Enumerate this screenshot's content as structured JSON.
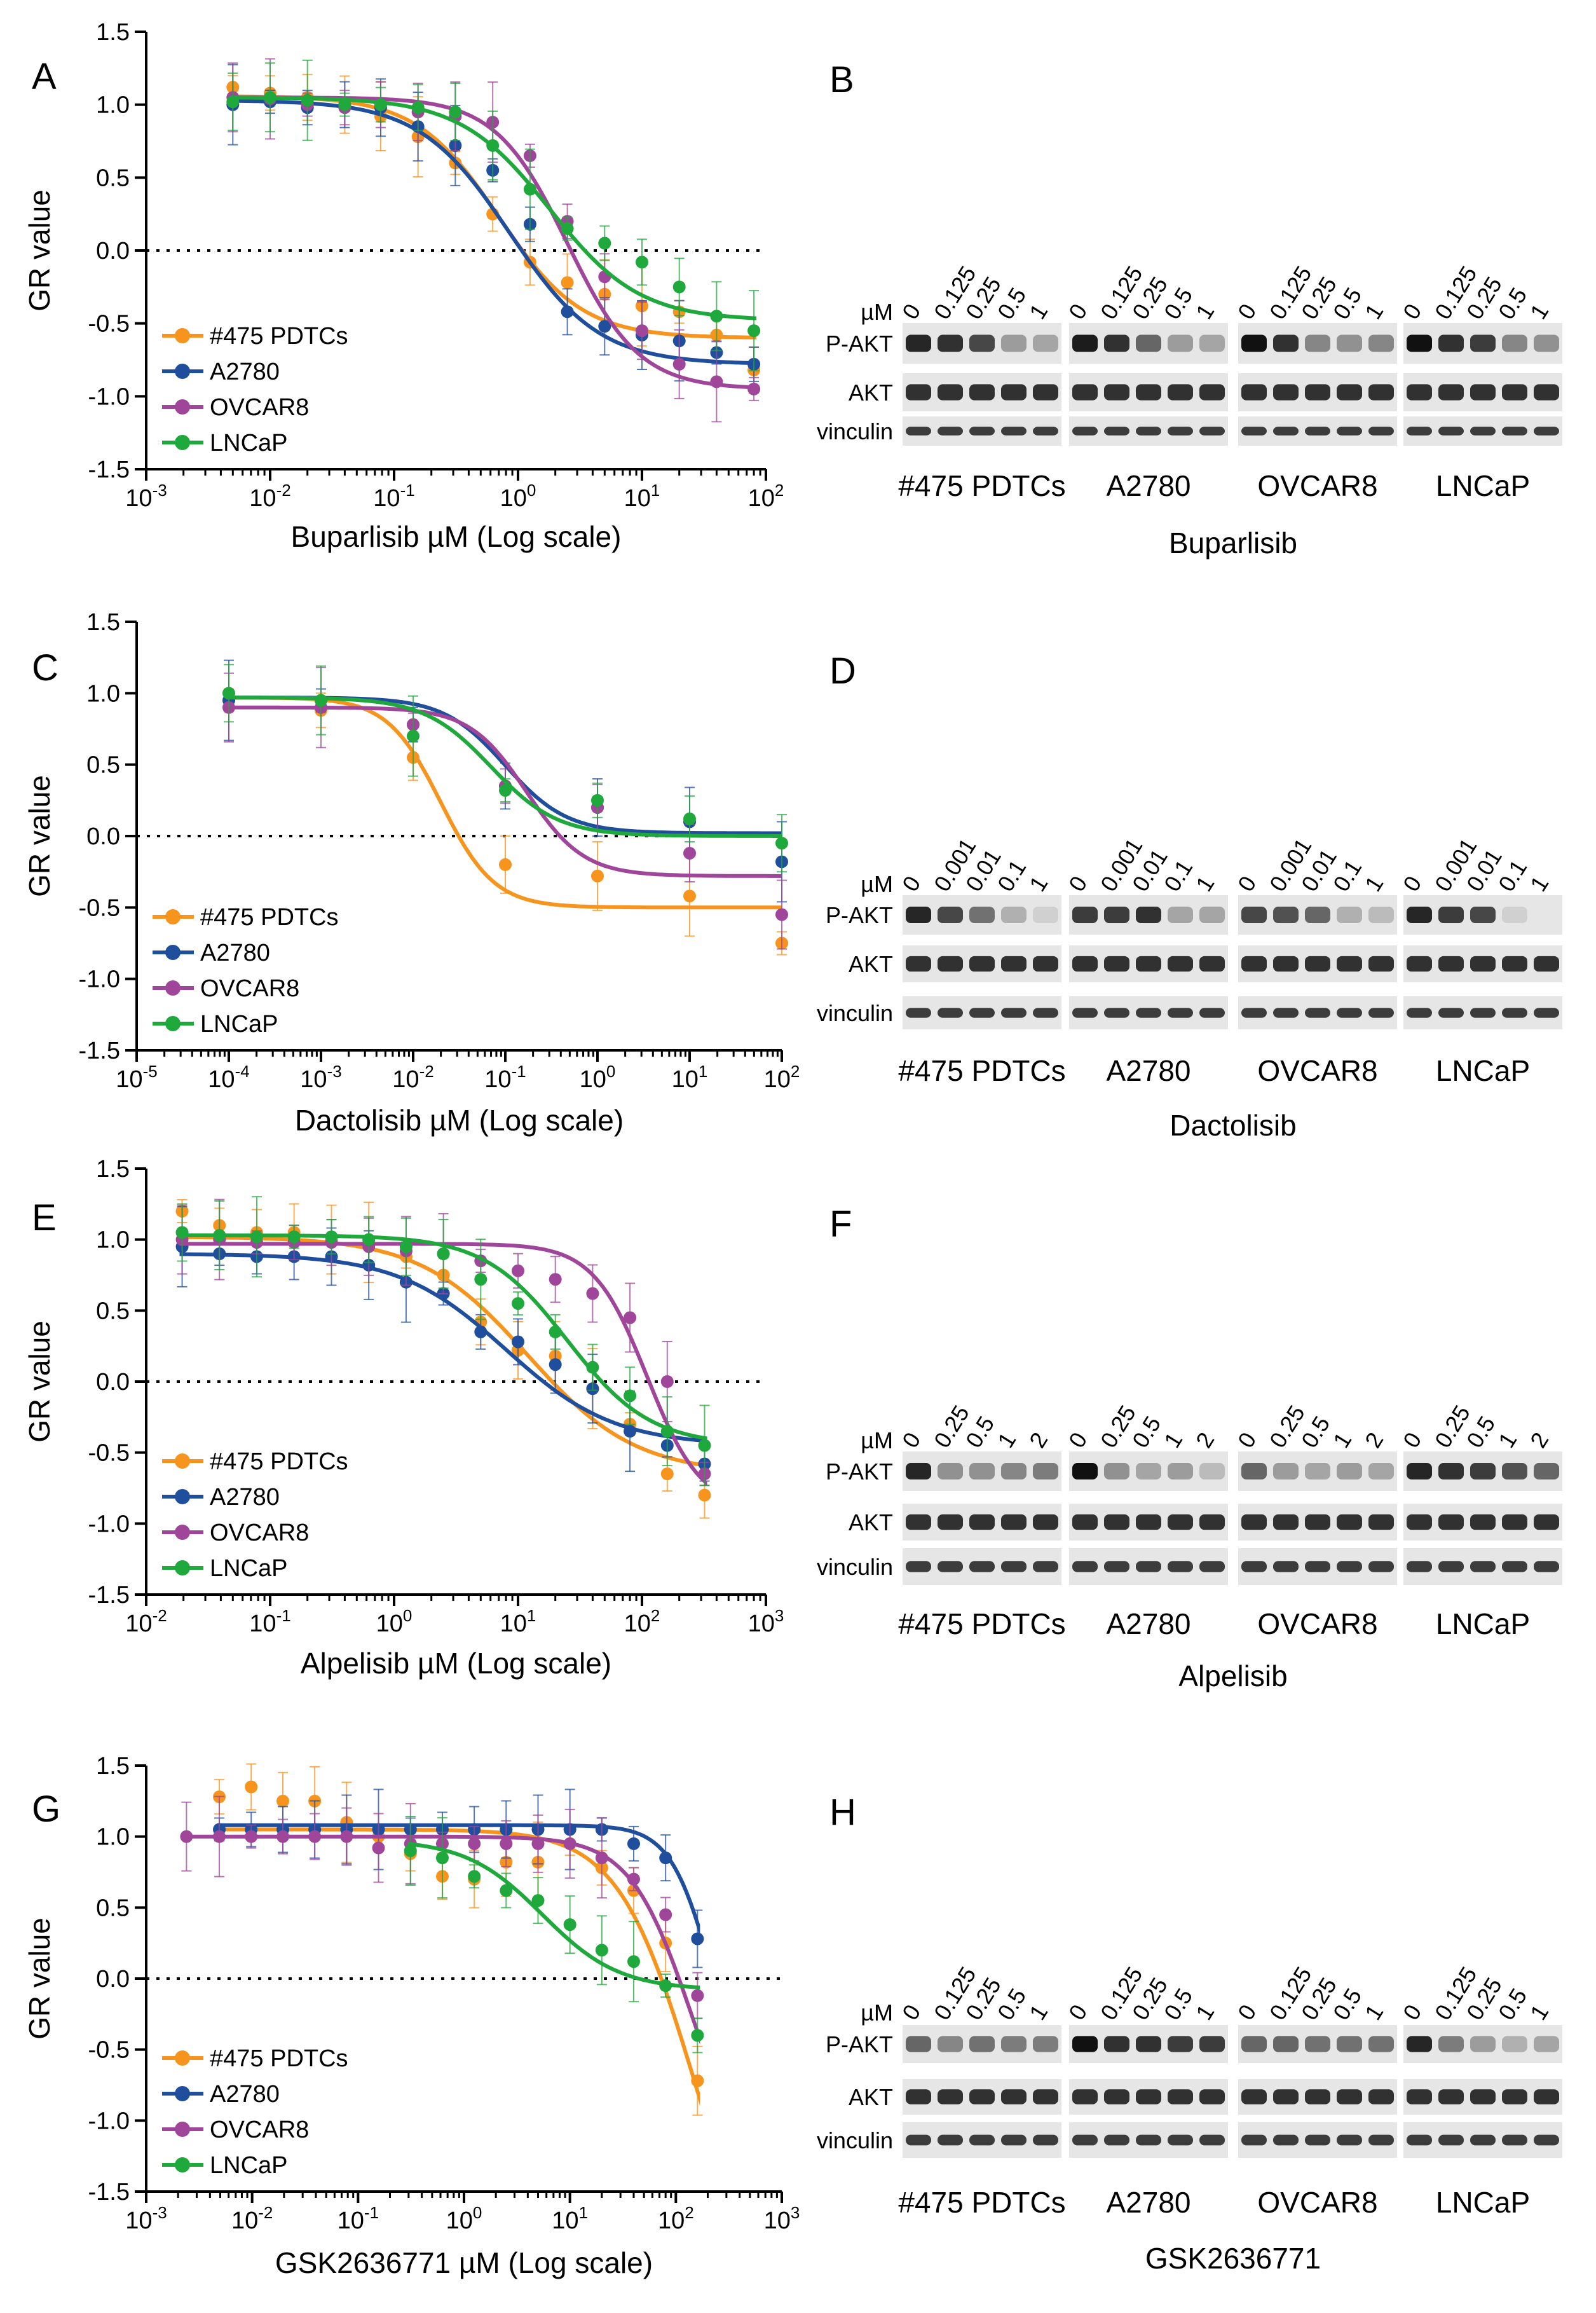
{
  "colors": {
    "#475 PDTCs": "#f7941d",
    "A2780": "#1f4e9c",
    "OVCAR8": "#a0469a",
    "LNCaP": "#1fa83c"
  },
  "chart_data": [
    {
      "type": "scatter",
      "panel": "A",
      "title": "",
      "xlabel": "Buparlisib µM (Log scale)",
      "ylabel": "GR value",
      "xscale": "log",
      "xlim": [
        0.001,
        100
      ],
      "ylim": [
        -1.5,
        1.5
      ],
      "x_ticks": [
        {
          "v": 0.001,
          "l": "10",
          "e": "-3"
        },
        {
          "v": 0.01,
          "l": "10",
          "e": "-2"
        },
        {
          "v": 0.1,
          "l": "10",
          "e": "-1"
        },
        {
          "v": 1,
          "l": "10",
          "e": "0"
        },
        {
          "v": 10,
          "l": "10",
          "e": "1"
        },
        {
          "v": 100,
          "l": "10",
          "e": "2"
        }
      ],
      "y_ticks": [
        "1.5",
        "1.0",
        "0.5",
        "0.0",
        "-0.5",
        "-1.0",
        "-1.5"
      ],
      "legend": [
        "#475 PDTCs",
        "A2780",
        "OVCAR8",
        "LNCaP"
      ],
      "legend_position": "bottom-left",
      "x": [
        0.005,
        0.01,
        0.02,
        0.04,
        0.078,
        0.156,
        0.312,
        0.625,
        1.25,
        2.5,
        5,
        10,
        20,
        40,
        80
      ],
      "series": [
        {
          "name": "#475 PDTCs",
          "values": [
            1.12,
            1.08,
            1.05,
            1.0,
            0.92,
            0.78,
            0.6,
            0.25,
            -0.08,
            -0.22,
            -0.3,
            -0.38,
            -0.42,
            -0.58,
            -0.82
          ],
          "curve": {
            "top": 1.06,
            "bottom": -0.6,
            "ec50": 0.7,
            "h": 1.3
          }
        },
        {
          "name": "A2780",
          "values": [
            1.0,
            1.02,
            0.98,
            1.0,
            0.98,
            0.85,
            0.72,
            0.55,
            0.18,
            -0.42,
            -0.52,
            -0.58,
            -0.62,
            -0.7,
            -0.78
          ],
          "curve": {
            "top": 1.03,
            "bottom": -0.78,
            "ec50": 0.85,
            "h": 1.2
          }
        },
        {
          "name": "OVCAR8",
          "values": [
            1.05,
            1.04,
            1.0,
            0.98,
            1.0,
            0.95,
            0.92,
            0.88,
            0.65,
            0.2,
            -0.18,
            -0.55,
            -0.78,
            -0.9,
            -0.95
          ],
          "curve": {
            "top": 1.05,
            "bottom": -0.95,
            "ec50": 2.5,
            "h": 1.5
          }
        },
        {
          "name": "LNCaP",
          "values": [
            1.02,
            1.05,
            1.03,
            1.0,
            1.0,
            0.98,
            0.95,
            0.72,
            0.42,
            0.15,
            0.05,
            -0.08,
            -0.25,
            -0.45,
            -0.55
          ],
          "curve": {
            "top": 1.05,
            "bottom": -0.48,
            "ec50": 1.8,
            "h": 1.2
          }
        }
      ]
    },
    {
      "type": "scatter",
      "panel": "C",
      "title": "",
      "xlabel": "Dactolisib µM (Log scale)",
      "ylabel": "GR value",
      "xscale": "log",
      "xlim": [
        1e-05,
        100
      ],
      "ylim": [
        -1.5,
        1.5
      ],
      "x_ticks": [
        {
          "v": 1e-05,
          "l": "10",
          "e": "-5"
        },
        {
          "v": 0.0001,
          "l": "10",
          "e": "-4"
        },
        {
          "v": 0.001,
          "l": "10",
          "e": "-3"
        },
        {
          "v": 0.01,
          "l": "10",
          "e": "-2"
        },
        {
          "v": 0.1,
          "l": "10",
          "e": "-1"
        },
        {
          "v": 1,
          "l": "10",
          "e": "0"
        },
        {
          "v": 10,
          "l": "10",
          "e": "1"
        },
        {
          "v": 100,
          "l": "10",
          "e": "2"
        }
      ],
      "y_ticks": [
        "1.5",
        "1.0",
        "0.5",
        "0.0",
        "-0.5",
        "-1.0",
        "-1.5"
      ],
      "legend": [
        "#475 PDTCs",
        "A2780",
        "OVCAR8",
        "LNCaP"
      ],
      "legend_position": "bottom-left",
      "x": [
        0.0001,
        0.001,
        0.01,
        0.1,
        1,
        10,
        100
      ],
      "series": [
        {
          "name": "#475 PDTCs",
          "values": [
            0.95,
            0.88,
            0.55,
            -0.2,
            -0.28,
            -0.42,
            -0.75
          ],
          "curve": {
            "top": 0.97,
            "bottom": -0.5,
            "ec50": 0.02,
            "h": 1.5
          }
        },
        {
          "name": "A2780",
          "values": [
            0.95,
            0.95,
            0.78,
            0.35,
            0.2,
            0.1,
            -0.18
          ],
          "curve": {
            "top": 0.97,
            "bottom": 0.02,
            "ec50": 0.1,
            "h": 1.3
          }
        },
        {
          "name": "OVCAR8",
          "values": [
            0.9,
            0.9,
            0.78,
            0.35,
            0.2,
            -0.12,
            -0.55
          ],
          "curve": {
            "top": 0.9,
            "bottom": -0.28,
            "ec50": 0.17,
            "h": 1.4
          }
        },
        {
          "name": "LNCaP",
          "values": [
            1.0,
            0.95,
            0.7,
            0.32,
            0.25,
            0.12,
            -0.05
          ],
          "curve": {
            "top": 0.97,
            "bottom": 0.0,
            "ec50": 0.07,
            "h": 1.2
          }
        }
      ]
    },
    {
      "type": "scatter",
      "panel": "E",
      "title": "",
      "xlabel": "Alpelisib µM (Log scale)",
      "ylabel": "GR value",
      "xscale": "log",
      "xlim": [
        0.01,
        1000
      ],
      "ylim": [
        -1.5,
        1.5
      ],
      "x_ticks": [
        {
          "v": 0.01,
          "l": "10",
          "e": "-2"
        },
        {
          "v": 0.1,
          "l": "10",
          "e": "-1"
        },
        {
          "v": 1,
          "l": "10",
          "e": "0"
        },
        {
          "v": 10,
          "l": "10",
          "e": "1"
        },
        {
          "v": 100,
          "l": "10",
          "e": "2"
        },
        {
          "v": 1000,
          "l": "10",
          "e": "3"
        }
      ],
      "y_ticks": [
        "1.5",
        "1.0",
        "0.5",
        "0.0",
        "-0.5",
        "-1.0",
        "-1.5"
      ],
      "legend": [
        "#475 PDTCs",
        "A2780",
        "OVCAR8",
        "LNCaP"
      ],
      "legend_position": "bottom-left",
      "x": [
        0.0195,
        0.039,
        0.078,
        0.156,
        0.3125,
        0.625,
        1.25,
        2.5,
        5,
        10,
        20,
        40,
        80,
        160,
        320
      ],
      "series": [
        {
          "name": "#475 PDTCs",
          "values": [
            1.2,
            1.1,
            1.05,
            1.05,
            1.0,
            0.98,
            0.88,
            0.75,
            0.42,
            0.22,
            0.18,
            -0.05,
            -0.3,
            -0.65,
            -0.8
          ],
          "curve": {
            "top": 1.02,
            "bottom": -0.65,
            "ec50": 12,
            "h": 1.0
          }
        },
        {
          "name": "A2780",
          "values": [
            0.95,
            0.9,
            0.88,
            0.88,
            0.88,
            0.82,
            0.7,
            0.62,
            0.35,
            0.28,
            0.12,
            -0.05,
            -0.35,
            -0.45,
            -0.58
          ],
          "curve": {
            "top": 0.9,
            "bottom": -0.45,
            "ec50": 8,
            "h": 1.0
          }
        },
        {
          "name": "OVCAR8",
          "values": [
            1.0,
            1.0,
            0.98,
            0.98,
            0.98,
            0.95,
            0.92,
            0.9,
            0.85,
            0.78,
            0.72,
            0.62,
            0.45,
            0.0,
            -0.65
          ],
          "curve": {
            "top": 0.97,
            "bottom": -0.9,
            "ec50": 110,
            "h": 2.0
          }
        },
        {
          "name": "LNCaP",
          "values": [
            1.05,
            1.03,
            1.02,
            1.02,
            1.02,
            1.0,
            0.95,
            0.9,
            0.72,
            0.55,
            0.35,
            0.1,
            -0.1,
            -0.35,
            -0.45
          ],
          "curve": {
            "top": 1.03,
            "bottom": -0.45,
            "ec50": 25,
            "h": 1.3
          }
        }
      ]
    },
    {
      "type": "scatter",
      "panel": "G",
      "title": "",
      "xlabel": "GSK2636771 µM (Log scale)",
      "ylabel": "GR value",
      "xscale": "log",
      "xlim": [
        0.001,
        1000
      ],
      "ylim": [
        -1.5,
        1.5
      ],
      "x_ticks": [
        {
          "v": 0.001,
          "l": "10",
          "e": "-3"
        },
        {
          "v": 0.01,
          "l": "10",
          "e": "-2"
        },
        {
          "v": 0.1,
          "l": "10",
          "e": "-1"
        },
        {
          "v": 1,
          "l": "10",
          "e": "0"
        },
        {
          "v": 10,
          "l": "10",
          "e": "1"
        },
        {
          "v": 100,
          "l": "10",
          "e": "2"
        },
        {
          "v": 1000,
          "l": "10",
          "e": "3"
        }
      ],
      "y_ticks": [
        "1.5",
        "1.0",
        "0.5",
        "0.0",
        "-0.5",
        "-1.0",
        "-1.5"
      ],
      "legend": [
        "#475 PDTCs",
        "A2780",
        "OVCAR8",
        "LNCaP"
      ],
      "legend_position": "bottom-left",
      "x": [
        0.0024,
        0.0049,
        0.0098,
        0.0195,
        0.039,
        0.078,
        0.156,
        0.3125,
        0.625,
        1.25,
        2.5,
        5,
        10,
        20,
        40,
        80,
        160
      ],
      "series": [
        {
          "name": "#475 PDTCs",
          "values": [
            null,
            1.28,
            1.35,
            1.25,
            1.25,
            1.1,
            1.0,
            0.88,
            0.72,
            0.7,
            0.82,
            0.82,
            0.95,
            0.78,
            0.62,
            0.25,
            -0.72
          ],
          "curve": {
            "top": 1.05,
            "bottom": -2.5,
            "ec50": 150,
            "h": 1.2
          }
        },
        {
          "name": "A2780",
          "values": [
            null,
            1.05,
            1.05,
            1.05,
            1.05,
            1.05,
            1.05,
            1.05,
            1.05,
            1.05,
            1.05,
            1.05,
            1.05,
            1.05,
            0.95,
            0.85,
            0.28
          ],
          "curve": {
            "top": 1.08,
            "bottom": -1.0,
            "ec50": 220,
            "h": 2.2
          }
        },
        {
          "name": "OVCAR8",
          "values": [
            1.0,
            1.0,
            1.0,
            1.0,
            1.0,
            1.0,
            0.92,
            0.95,
            0.95,
            0.95,
            0.95,
            0.95,
            0.95,
            0.85,
            0.7,
            0.45,
            -0.12
          ],
          "curve": {
            "top": 1.0,
            "bottom": -1.5,
            "ec50": 140,
            "h": 1.5
          }
        },
        {
          "name": "LNCaP",
          "values": [
            null,
            null,
            null,
            null,
            null,
            null,
            null,
            0.9,
            0.85,
            0.72,
            0.62,
            0.55,
            0.38,
            0.2,
            0.12,
            -0.05,
            -0.4
          ],
          "curve": {
            "top": 0.98,
            "bottom": -0.08,
            "ec50": 5.5,
            "h": 1.2
          }
        }
      ]
    }
  ],
  "blots": [
    {
      "panel": "B",
      "drug_label": "Buparlisib",
      "unit_label": "µM",
      "concentrations": [
        "0",
        "0.125",
        "0.25",
        "0.5",
        "1"
      ],
      "rows": [
        "P-AKT",
        "AKT",
        "vinculin"
      ],
      "cell_lines": [
        "#475 PDTCs",
        "A2780",
        "OVCAR8",
        "LNCaP"
      ],
      "pakt_intensity": [
        [
          0.9,
          0.85,
          0.75,
          0.35,
          0.3
        ],
        [
          0.95,
          0.85,
          0.6,
          0.35,
          0.3
        ],
        [
          1.0,
          0.85,
          0.45,
          0.4,
          0.45
        ],
        [
          1.0,
          0.85,
          0.8,
          0.45,
          0.4
        ]
      ]
    },
    {
      "panel": "D",
      "drug_label": "Dactolisib",
      "unit_label": "µM",
      "concentrations": [
        "0",
        "0.001",
        "0.01",
        "0.1",
        "1"
      ],
      "rows": [
        "P-AKT",
        "AKT",
        "vinculin"
      ],
      "cell_lines": [
        "#475 PDTCs",
        "A2780",
        "OVCAR8",
        "LNCaP"
      ],
      "pakt_intensity": [
        [
          0.9,
          0.75,
          0.55,
          0.25,
          0.1
        ],
        [
          0.8,
          0.8,
          0.85,
          0.3,
          0.3
        ],
        [
          0.75,
          0.7,
          0.6,
          0.25,
          0.2
        ],
        [
          0.9,
          0.8,
          0.75,
          0.1,
          0.0
        ]
      ]
    },
    {
      "panel": "F",
      "drug_label": "Alpelisib",
      "unit_label": "µM",
      "concentrations": [
        "0",
        "0.25",
        "0.5",
        "1",
        "2"
      ],
      "rows": [
        "P-AKT",
        "AKT",
        "vinculin"
      ],
      "cell_lines": [
        "#475 PDTCs",
        "A2780",
        "OVCAR8",
        "LNCaP"
      ],
      "pakt_intensity": [
        [
          0.9,
          0.4,
          0.4,
          0.45,
          0.5
        ],
        [
          1.0,
          0.4,
          0.3,
          0.35,
          0.2
        ],
        [
          0.6,
          0.35,
          0.3,
          0.35,
          0.3
        ],
        [
          0.9,
          0.85,
          0.8,
          0.7,
          0.6
        ]
      ]
    },
    {
      "panel": "H",
      "drug_label": "GSK2636771",
      "unit_label": "µM",
      "concentrations": [
        "0",
        "0.125",
        "0.25",
        "0.5",
        "1"
      ],
      "rows": [
        "P-AKT",
        "AKT",
        "vinculin"
      ],
      "cell_lines": [
        "#475 PDTCs",
        "A2780",
        "OVCAR8",
        "LNCaP"
      ],
      "pakt_intensity": [
        [
          0.6,
          0.45,
          0.55,
          0.5,
          0.5
        ],
        [
          1.0,
          0.85,
          0.85,
          0.8,
          0.8
        ],
        [
          0.6,
          0.6,
          0.55,
          0.55,
          0.55
        ],
        [
          0.9,
          0.5,
          0.35,
          0.25,
          0.3
        ]
      ]
    }
  ]
}
